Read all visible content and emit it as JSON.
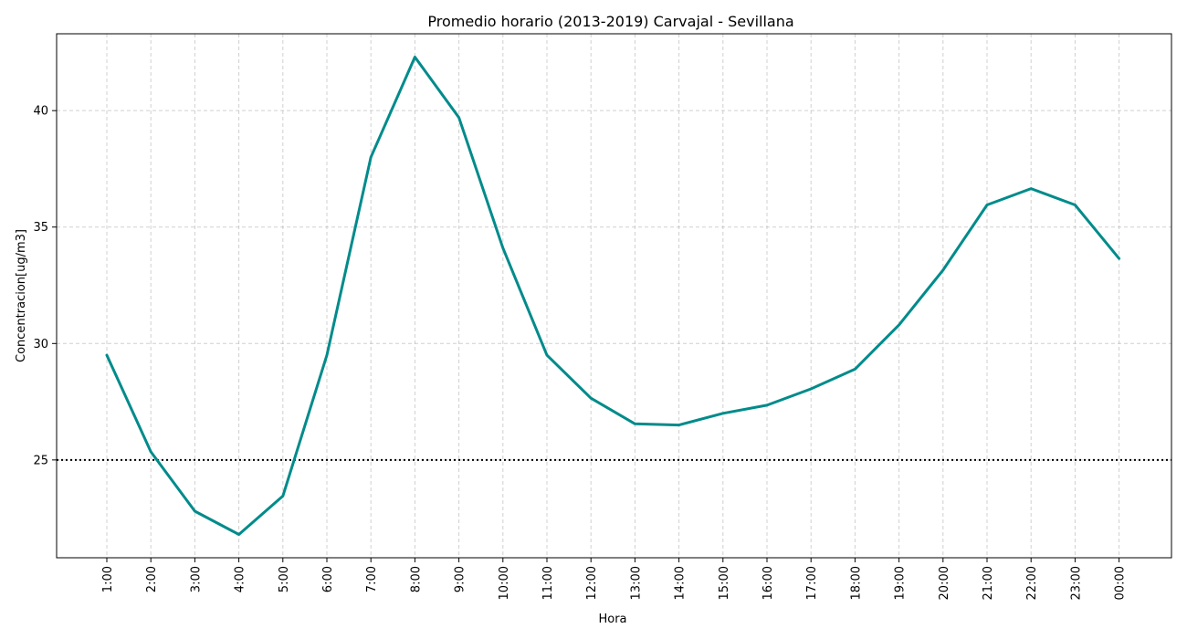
{
  "chart_data": {
    "type": "line",
    "title": "Promedio horario (2013-2019) Carvajal - Sevillana",
    "xlabel": "Hora",
    "ylabel": "Concentracion[ug/m3]",
    "categories": [
      "1:00",
      "2:00",
      "3:00",
      "4:00",
      "5:00",
      "6:00",
      "7:00",
      "8:00",
      "9:00",
      "10:00",
      "11:00",
      "12:00",
      "13:00",
      "14:00",
      "15:00",
      "16:00",
      "17:00",
      "18:00",
      "19:00",
      "20:00",
      "21:00",
      "22:00",
      "23:00",
      "00:00"
    ],
    "series": [
      {
        "values": [
          29.5,
          25.35,
          22.8,
          21.8,
          23.45,
          29.5,
          38.0,
          42.3,
          39.7,
          34.1,
          29.5,
          27.65,
          26.55,
          26.5,
          27.0,
          27.35,
          28.05,
          28.9,
          30.8,
          33.15,
          35.95,
          36.65,
          35.95,
          33.65
        ],
        "color": "#008b8b"
      }
    ],
    "reference_line": {
      "value": 25,
      "style": "dotted",
      "color": "#000000"
    },
    "ylim": [
      20.8,
      43.3
    ],
    "yticks": [
      25,
      30,
      35,
      40
    ],
    "grid": true,
    "legend": "none"
  }
}
